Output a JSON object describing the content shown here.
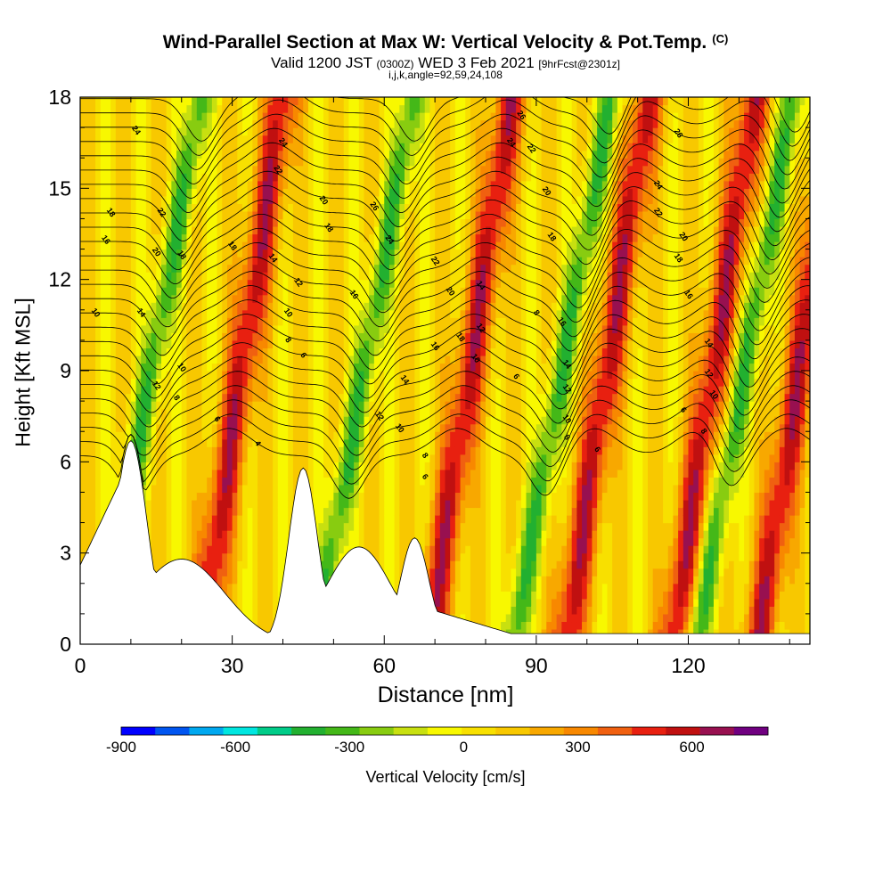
{
  "title": "Wind-Parallel Section at Max W: Vertical Velocity & Pot.Temp.",
  "title_suffix": "(C)",
  "subtitle_a": "Valid 1200 JST",
  "subtitle_b": "(0300Z)",
  "subtitle_c": "WED 3 Feb 2021",
  "subtitle_d": "[9hrFcst@2301z]",
  "params": "i,j,k,angle=92,59,24,108",
  "chart_data": {
    "type": "heatmap",
    "xlabel": "Distance [nm]",
    "ylabel": "Height [Kft MSL]",
    "xlim": [
      0,
      144
    ],
    "ylim": [
      0,
      18
    ],
    "x_ticks": [
      0,
      30,
      60,
      90,
      120
    ],
    "y_ticks": [
      0,
      3,
      6,
      9,
      12,
      15,
      18
    ],
    "colorbar": {
      "label": "Vertical Velocity [cm/s]",
      "ticks": [
        -900,
        -600,
        -300,
        0,
        300,
        600
      ],
      "range": [
        -900,
        800
      ],
      "colors": [
        "#0000ff",
        "#0055f0",
        "#00a8ef",
        "#00e6e0",
        "#00cc88",
        "#22b030",
        "#44b818",
        "#88cc10",
        "#c8e010",
        "#f8f800",
        "#f8e000",
        "#f8c800",
        "#f8a800",
        "#f88800",
        "#f06010",
        "#e82010",
        "#c01010",
        "#981050",
        "#700080"
      ]
    },
    "updrafts_x": [
      31,
      76,
      103,
      124,
      141
    ],
    "downdrafts_x": [
      13,
      55,
      94,
      130
    ],
    "terrain_peaks": [
      {
        "x": 10,
        "height": 6.7
      },
      {
        "x": 44,
        "height": 5.8
      },
      {
        "x": 66,
        "height": 3.5
      }
    ],
    "theta_labels": [
      {
        "x": 11,
        "y": 16.9,
        "t": "24"
      },
      {
        "x": 6,
        "y": 14.2,
        "t": "18"
      },
      {
        "x": 5,
        "y": 13.3,
        "t": "16"
      },
      {
        "x": 3,
        "y": 10.9,
        "t": "10"
      },
      {
        "x": 16,
        "y": 14.2,
        "t": "22"
      },
      {
        "x": 15,
        "y": 12.9,
        "t": "20"
      },
      {
        "x": 20,
        "y": 12.8,
        "t": "18"
      },
      {
        "x": 12,
        "y": 10.9,
        "t": "14"
      },
      {
        "x": 20,
        "y": 9.1,
        "t": "10"
      },
      {
        "x": 15,
        "y": 8.5,
        "t": "12"
      },
      {
        "x": 19,
        "y": 8.1,
        "t": "8"
      },
      {
        "x": 27,
        "y": 7.4,
        "t": "6"
      },
      {
        "x": 35,
        "y": 6.6,
        "t": "4"
      },
      {
        "x": 30,
        "y": 13.1,
        "t": "18"
      },
      {
        "x": 40,
        "y": 16.5,
        "t": "24"
      },
      {
        "x": 39,
        "y": 15.6,
        "t": "22"
      },
      {
        "x": 48,
        "y": 14.6,
        "t": "20"
      },
      {
        "x": 49,
        "y": 13.7,
        "t": "18"
      },
      {
        "x": 38,
        "y": 12.7,
        "t": "14"
      },
      {
        "x": 43,
        "y": 11.9,
        "t": "12"
      },
      {
        "x": 41,
        "y": 10.9,
        "t": "10"
      },
      {
        "x": 41,
        "y": 10.0,
        "t": "8"
      },
      {
        "x": 44,
        "y": 9.5,
        "t": "6"
      },
      {
        "x": 54,
        "y": 11.5,
        "t": "16"
      },
      {
        "x": 58,
        "y": 14.4,
        "t": "26"
      },
      {
        "x": 61,
        "y": 13.3,
        "t": "24"
      },
      {
        "x": 70,
        "y": 12.6,
        "t": "22"
      },
      {
        "x": 73,
        "y": 11.6,
        "t": "20"
      },
      {
        "x": 64,
        "y": 8.7,
        "t": "14"
      },
      {
        "x": 59,
        "y": 7.5,
        "t": "12"
      },
      {
        "x": 63,
        "y": 7.1,
        "t": "10"
      },
      {
        "x": 68,
        "y": 6.2,
        "t": "8"
      },
      {
        "x": 68,
        "y": 5.5,
        "t": "6"
      },
      {
        "x": 70,
        "y": 9.8,
        "t": "16"
      },
      {
        "x": 75,
        "y": 10.1,
        "t": "18"
      },
      {
        "x": 79,
        "y": 11.8,
        "t": "14"
      },
      {
        "x": 79,
        "y": 10.4,
        "t": "12"
      },
      {
        "x": 78,
        "y": 9.4,
        "t": "10"
      },
      {
        "x": 86,
        "y": 8.8,
        "t": "6"
      },
      {
        "x": 87,
        "y": 17.4,
        "t": "26"
      },
      {
        "x": 85,
        "y": 16.5,
        "t": "24"
      },
      {
        "x": 89,
        "y": 16.3,
        "t": "22"
      },
      {
        "x": 92,
        "y": 14.9,
        "t": "20"
      },
      {
        "x": 93,
        "y": 13.4,
        "t": "18"
      },
      {
        "x": 90,
        "y": 10.9,
        "t": "8"
      },
      {
        "x": 95,
        "y": 10.6,
        "t": "16"
      },
      {
        "x": 96,
        "y": 9.2,
        "t": "14"
      },
      {
        "x": 96,
        "y": 8.4,
        "t": "12"
      },
      {
        "x": 96,
        "y": 7.4,
        "t": "10"
      },
      {
        "x": 96,
        "y": 6.8,
        "t": "8"
      },
      {
        "x": 102,
        "y": 6.4,
        "t": "6"
      },
      {
        "x": 118,
        "y": 16.8,
        "t": "26"
      },
      {
        "x": 114,
        "y": 15.1,
        "t": "24"
      },
      {
        "x": 114,
        "y": 14.2,
        "t": "22"
      },
      {
        "x": 119,
        "y": 13.4,
        "t": "20"
      },
      {
        "x": 118,
        "y": 12.7,
        "t": "18"
      },
      {
        "x": 120,
        "y": 11.5,
        "t": "16"
      },
      {
        "x": 124,
        "y": 9.9,
        "t": "14"
      },
      {
        "x": 124,
        "y": 8.9,
        "t": "12"
      },
      {
        "x": 125,
        "y": 8.2,
        "t": "10"
      },
      {
        "x": 119,
        "y": 7.7,
        "t": "6"
      },
      {
        "x": 123,
        "y": 7.0,
        "t": "8"
      }
    ]
  }
}
